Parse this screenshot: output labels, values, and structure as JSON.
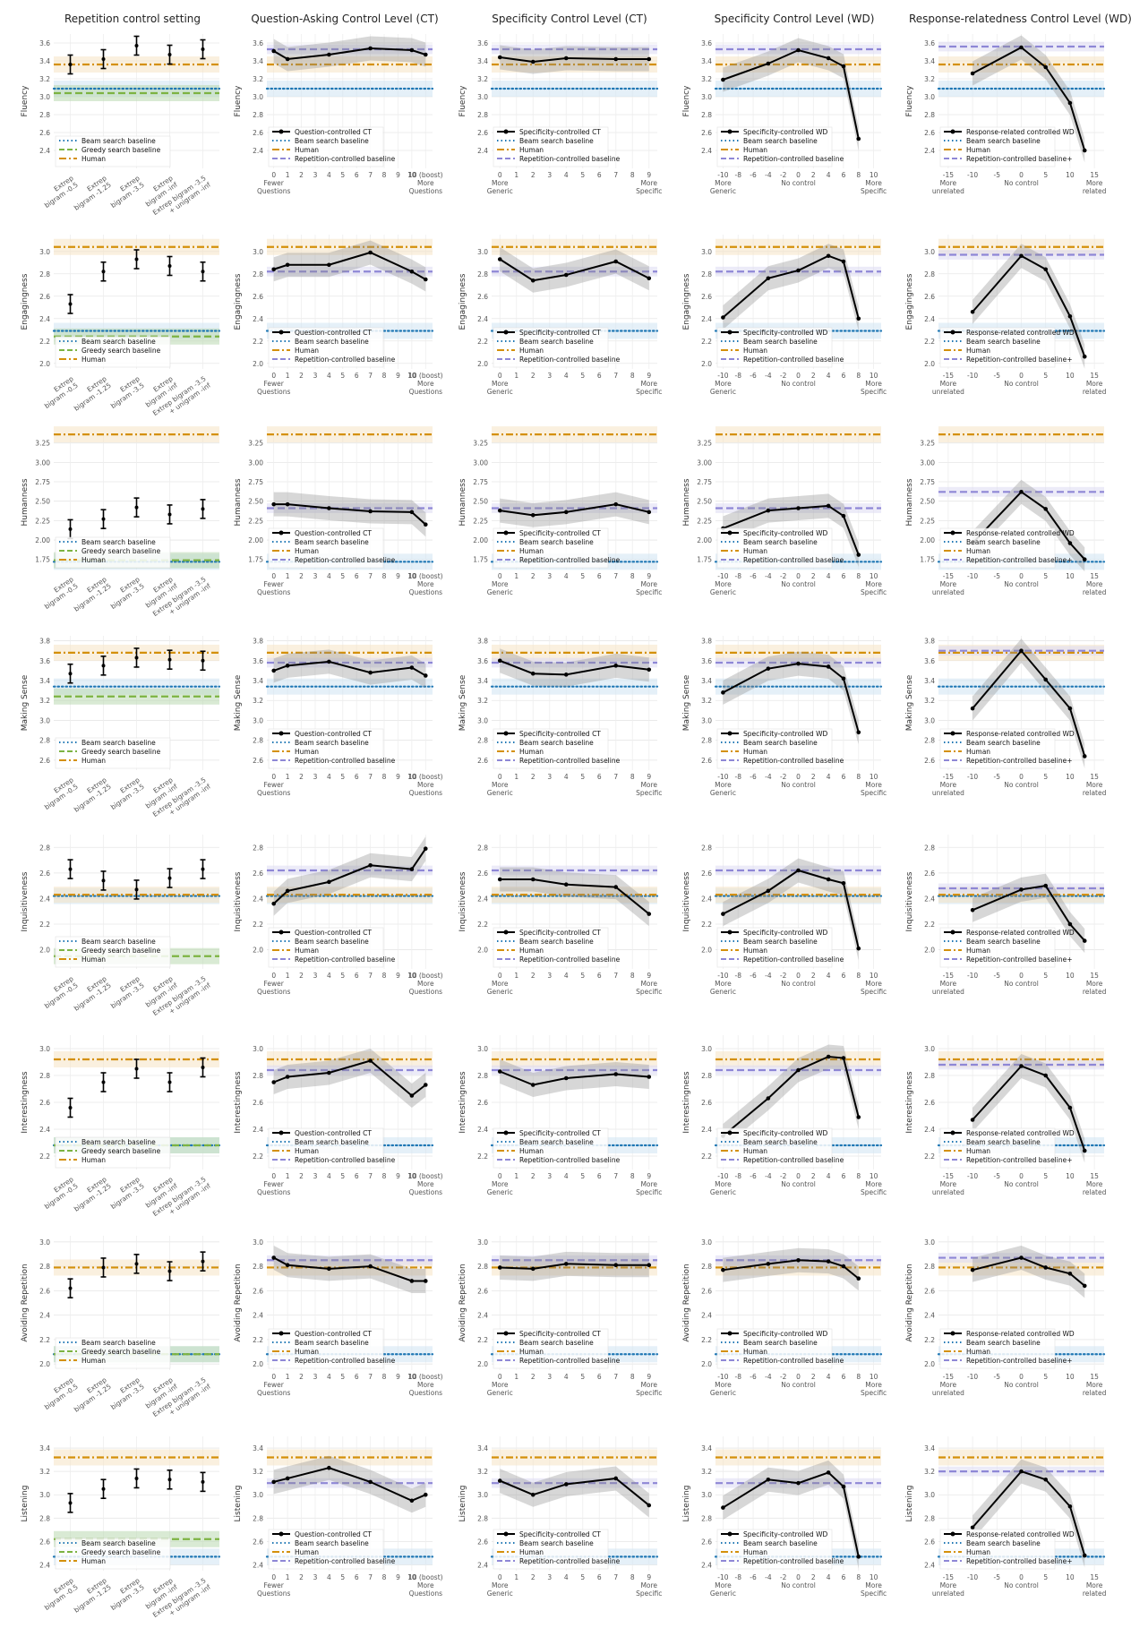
{
  "colors": {
    "beam": "#1f77b4",
    "greedy": "#7cb342",
    "human": "#d4900a",
    "rep": "#8e87d6",
    "model": "#000000",
    "band_beam": "#cfe3f2",
    "band_greedy": "#b9d9b0",
    "band_human": "#f6e3c4",
    "band_rep": "#dcdaf2",
    "band_model": "#8c8c8c"
  },
  "column_titles": [
    "Repetition control setting",
    "Question-Asking Control Level (CT)",
    "Specificity Control Level (CT)",
    "Specificity Control Level (WD)",
    "Response-relatedness Control Level (WD)"
  ],
  "rows": [
    "Fluency",
    "Engagingness",
    "Humanness",
    "Making Sense",
    "Inquisitiveness",
    "Interestingness",
    "Avoiding Repetition",
    "Listening"
  ],
  "legend_labels": {
    "beam": "Beam search baseline",
    "greedy": "Greedy search baseline",
    "human": "Human",
    "rep": "Repetition-controlled baseline",
    "rep_plus": "Repetition-controlled baseline+",
    "ct_q": "Question-controlled CT",
    "ct_s": "Specificity-controlled CT",
    "wd_s": "Specificity-controlled WD",
    "wd_r": "Response-related controlled WD"
  },
  "axes": {
    "rep_categories": [
      "Extrep\nbigram -0.5",
      "Extrep\nbigram -1.25",
      "Extrep\nbigram -3.5",
      "Extrep\nbigram -inf",
      "Extrep bigram -3.5\n+ unigram -inf"
    ],
    "q_ticks": [
      "0",
      "1",
      "2",
      "3",
      "4",
      "5",
      "6",
      "7",
      "8",
      "9",
      "10",
      "10 (boost)"
    ],
    "q_ends": [
      "Fewer\nQuestions",
      "More\nQuestions"
    ],
    "sct_ticks": [
      "0",
      "1",
      "2",
      "3",
      "4",
      "5",
      "6",
      "7",
      "8",
      "9"
    ],
    "sct_ends": [
      "More\nGeneric",
      "More\nSpecific"
    ],
    "swd_ticks": [
      "-10",
      "-8",
      "-6",
      "-4",
      "-2",
      "0",
      "2",
      "4",
      "6",
      "8",
      "10"
    ],
    "swd_ends": [
      "More\nGeneric",
      "No control",
      "More\nSpecific"
    ],
    "rwd_ticks": [
      "-15",
      "-10",
      "-5",
      "0",
      "5",
      "10",
      "15"
    ],
    "rwd_ends": [
      "More\nunrelated",
      "No control",
      "More\nrelated"
    ]
  },
  "chart_data": [
    {
      "type": "line",
      "metric": "Fluency",
      "ylim": [
        2.2,
        3.7
      ],
      "yticks": [
        "2.4",
        "2.6",
        "2.8",
        "3.0",
        "3.2",
        "3.4",
        "3.6"
      ],
      "beam": 3.09,
      "greedy": 3.04,
      "human": 3.36,
      "rep": 3.53,
      "rep_plus": 3.56,
      "rep_setting": [
        3.36,
        3.42,
        3.57,
        3.47,
        3.53
      ],
      "ct_q": {
        "x": [
          0,
          1,
          4,
          7,
          10,
          11
        ],
        "y": [
          3.51,
          3.42,
          3.47,
          3.54,
          3.52,
          3.47
        ]
      },
      "ct_s": {
        "x": [
          0,
          2,
          4,
          7,
          9
        ],
        "y": [
          3.44,
          3.39,
          3.43,
          3.42,
          3.42
        ]
      },
      "wd_s": {
        "x": [
          -10,
          -4,
          0,
          4,
          6,
          8
        ],
        "y": [
          3.19,
          3.37,
          3.52,
          3.43,
          3.34,
          2.53
        ]
      },
      "wd_r": {
        "x": [
          -10,
          0,
          5,
          10,
          13
        ],
        "y": [
          3.26,
          3.55,
          3.33,
          2.93,
          2.4
        ]
      }
    },
    {
      "type": "line",
      "metric": "Engagingness",
      "ylim": [
        1.95,
        3.15
      ],
      "yticks": [
        "2.0",
        "2.2",
        "2.4",
        "2.6",
        "2.8",
        "3.0"
      ],
      "beam": 2.29,
      "greedy": 2.24,
      "human": 3.04,
      "rep": 2.82,
      "rep_plus": 2.97,
      "rep_setting": [
        2.53,
        2.82,
        2.93,
        2.87,
        2.82
      ],
      "ct_q": {
        "x": [
          0,
          1,
          4,
          7,
          10,
          11
        ],
        "y": [
          2.84,
          2.88,
          2.88,
          2.99,
          2.82,
          2.75
        ]
      },
      "ct_s": {
        "x": [
          0,
          2,
          4,
          7,
          9
        ],
        "y": [
          2.93,
          2.74,
          2.79,
          2.91,
          2.76
        ]
      },
      "wd_s": {
        "x": [
          -10,
          -4,
          0,
          4,
          6,
          8
        ],
        "y": [
          2.41,
          2.76,
          2.83,
          2.96,
          2.91,
          2.4
        ]
      },
      "wd_r": {
        "x": [
          -10,
          0,
          5,
          10,
          13
        ],
        "y": [
          2.46,
          2.96,
          2.84,
          2.42,
          2.06
        ]
      }
    },
    {
      "type": "line",
      "metric": "Humanness",
      "ylim": [
        1.62,
        3.35
      ],
      "yticks": [
        "1.75",
        "2.00",
        "2.25",
        "2.50",
        "2.75",
        "3.00",
        "3.25"
      ],
      "beam": 1.72,
      "greedy": 1.74,
      "human": 3.36,
      "rep": 2.41,
      "rep_plus": 2.62,
      "rep_setting": [
        2.14,
        2.27,
        2.42,
        2.33,
        2.4
      ],
      "ct_q": {
        "x": [
          0,
          1,
          4,
          7,
          10,
          11
        ],
        "y": [
          2.46,
          2.46,
          2.41,
          2.37,
          2.36,
          2.2
        ]
      },
      "ct_s": {
        "x": [
          0,
          2,
          4,
          7,
          9
        ],
        "y": [
          2.38,
          2.32,
          2.36,
          2.46,
          2.36
        ]
      },
      "wd_s": {
        "x": [
          -10,
          -4,
          0,
          4,
          6,
          8
        ],
        "y": [
          2.15,
          2.38,
          2.41,
          2.44,
          2.31,
          1.81
        ]
      },
      "wd_r": {
        "x": [
          -10,
          0,
          5,
          10,
          13
        ],
        "y": [
          1.96,
          2.62,
          2.4,
          1.96,
          1.75
        ]
      }
    },
    {
      "type": "line",
      "metric": "Making Sense",
      "ylim": [
        2.5,
        3.85
      ],
      "yticks": [
        "2.6",
        "2.8",
        "3.0",
        "3.2",
        "3.4",
        "3.6",
        "3.8"
      ],
      "beam": 3.34,
      "greedy": 3.24,
      "human": 3.68,
      "rep": 3.58,
      "rep_plus": 3.7,
      "rep_setting": [
        3.47,
        3.55,
        3.63,
        3.61,
        3.6
      ],
      "ct_q": {
        "x": [
          0,
          1,
          4,
          7,
          10,
          11
        ],
        "y": [
          3.5,
          3.55,
          3.59,
          3.48,
          3.53,
          3.45
        ]
      },
      "ct_s": {
        "x": [
          0,
          2,
          4,
          7,
          9
        ],
        "y": [
          3.6,
          3.47,
          3.46,
          3.55,
          3.51
        ]
      },
      "wd_s": {
        "x": [
          -10,
          -4,
          0,
          4,
          6,
          8
        ],
        "y": [
          3.28,
          3.52,
          3.57,
          3.54,
          3.42,
          2.88
        ]
      },
      "wd_r": {
        "x": [
          -10,
          0,
          5,
          10,
          13
        ],
        "y": [
          3.12,
          3.7,
          3.41,
          3.12,
          2.64
        ]
      }
    },
    {
      "type": "line",
      "metric": "Inquisitiveness",
      "ylim": [
        1.85,
        2.9
      ],
      "yticks": [
        "2.0",
        "2.2",
        "2.4",
        "2.6",
        "2.8"
      ],
      "beam": 2.42,
      "greedy": 1.95,
      "human": 2.43,
      "rep": 2.62,
      "rep_plus": 2.48,
      "rep_setting": [
        2.63,
        2.54,
        2.47,
        2.56,
        2.63
      ],
      "ct_q": {
        "x": [
          0,
          1,
          4,
          7,
          10,
          11
        ],
        "y": [
          2.36,
          2.46,
          2.53,
          2.66,
          2.63,
          2.79
        ]
      },
      "ct_s": {
        "x": [
          0,
          2,
          4,
          7,
          9
        ],
        "y": [
          2.55,
          2.55,
          2.51,
          2.49,
          2.28
        ]
      },
      "wd_s": {
        "x": [
          -10,
          -4,
          0,
          4,
          6,
          8
        ],
        "y": [
          2.28,
          2.46,
          2.62,
          2.55,
          2.52,
          2.01
        ]
      },
      "wd_r": {
        "x": [
          -10,
          0,
          5,
          10,
          13
        ],
        "y": [
          2.31,
          2.47,
          2.5,
          2.2,
          2.07
        ]
      }
    },
    {
      "type": "line",
      "metric": "Interestingness",
      "ylim": [
        2.1,
        3.1
      ],
      "yticks": [
        "2.2",
        "2.4",
        "2.6",
        "2.8",
        "3.0"
      ],
      "beam": 2.28,
      "greedy": 2.28,
      "human": 2.92,
      "rep": 2.84,
      "rep_plus": 2.88,
      "rep_setting": [
        2.56,
        2.75,
        2.85,
        2.75,
        2.86
      ],
      "ct_q": {
        "x": [
          0,
          1,
          4,
          7,
          10,
          11
        ],
        "y": [
          2.75,
          2.79,
          2.82,
          2.91,
          2.65,
          2.73
        ]
      },
      "ct_s": {
        "x": [
          0,
          2,
          4,
          7,
          9
        ],
        "y": [
          2.83,
          2.73,
          2.78,
          2.81,
          2.79
        ]
      },
      "wd_s": {
        "x": [
          -10,
          -4,
          0,
          4,
          6,
          8
        ],
        "y": [
          2.35,
          2.63,
          2.84,
          2.94,
          2.93,
          2.49
        ]
      },
      "wd_r": {
        "x": [
          -10,
          0,
          5,
          10,
          13
        ],
        "y": [
          2.47,
          2.87,
          2.8,
          2.56,
          2.24
        ]
      }
    },
    {
      "type": "line",
      "metric": "Avoiding Repetition",
      "ylim": [
        1.95,
        3.05
      ],
      "yticks": [
        "2.0",
        "2.2",
        "2.4",
        "2.6",
        "2.8",
        "3.0"
      ],
      "beam": 2.08,
      "greedy": 2.08,
      "human": 2.79,
      "rep": 2.85,
      "rep_plus": 2.87,
      "rep_setting": [
        2.62,
        2.79,
        2.82,
        2.76,
        2.84
      ],
      "ct_q": {
        "x": [
          0,
          1,
          4,
          7,
          10,
          11
        ],
        "y": [
          2.87,
          2.81,
          2.78,
          2.8,
          2.68,
          2.68
        ]
      },
      "ct_s": {
        "x": [
          0,
          2,
          4,
          7,
          9
        ],
        "y": [
          2.79,
          2.78,
          2.82,
          2.81,
          2.81
        ]
      },
      "wd_s": {
        "x": [
          -10,
          -4,
          0,
          4,
          6,
          8
        ],
        "y": [
          2.77,
          2.82,
          2.85,
          2.84,
          2.8,
          2.7
        ]
      },
      "wd_r": {
        "x": [
          -10,
          0,
          5,
          10,
          13
        ],
        "y": [
          2.77,
          2.87,
          2.79,
          2.74,
          2.64
        ]
      }
    },
    {
      "type": "line",
      "metric": "Listening",
      "ylim": [
        2.35,
        3.5
      ],
      "yticks": [
        "2.4",
        "2.6",
        "2.8",
        "3.0",
        "3.2",
        "3.4"
      ],
      "beam": 2.47,
      "greedy": 2.62,
      "human": 3.32,
      "rep": 3.1,
      "rep_plus": 3.2,
      "rep_setting": [
        2.93,
        3.05,
        3.14,
        3.13,
        3.11
      ],
      "ct_q": {
        "x": [
          0,
          1,
          4,
          7,
          10,
          11
        ],
        "y": [
          3.11,
          3.14,
          3.23,
          3.11,
          2.95,
          3.0
        ]
      },
      "ct_s": {
        "x": [
          0,
          2,
          4,
          7,
          9
        ],
        "y": [
          3.12,
          3.0,
          3.09,
          3.14,
          2.91
        ]
      },
      "wd_s": {
        "x": [
          -10,
          -4,
          0,
          4,
          6,
          8
        ],
        "y": [
          2.89,
          3.13,
          3.1,
          3.19,
          3.07,
          2.47
        ]
      },
      "wd_r": {
        "x": [
          -10,
          0,
          5,
          10,
          13
        ],
        "y": [
          2.72,
          3.2,
          3.13,
          2.9,
          2.48
        ]
      }
    }
  ]
}
